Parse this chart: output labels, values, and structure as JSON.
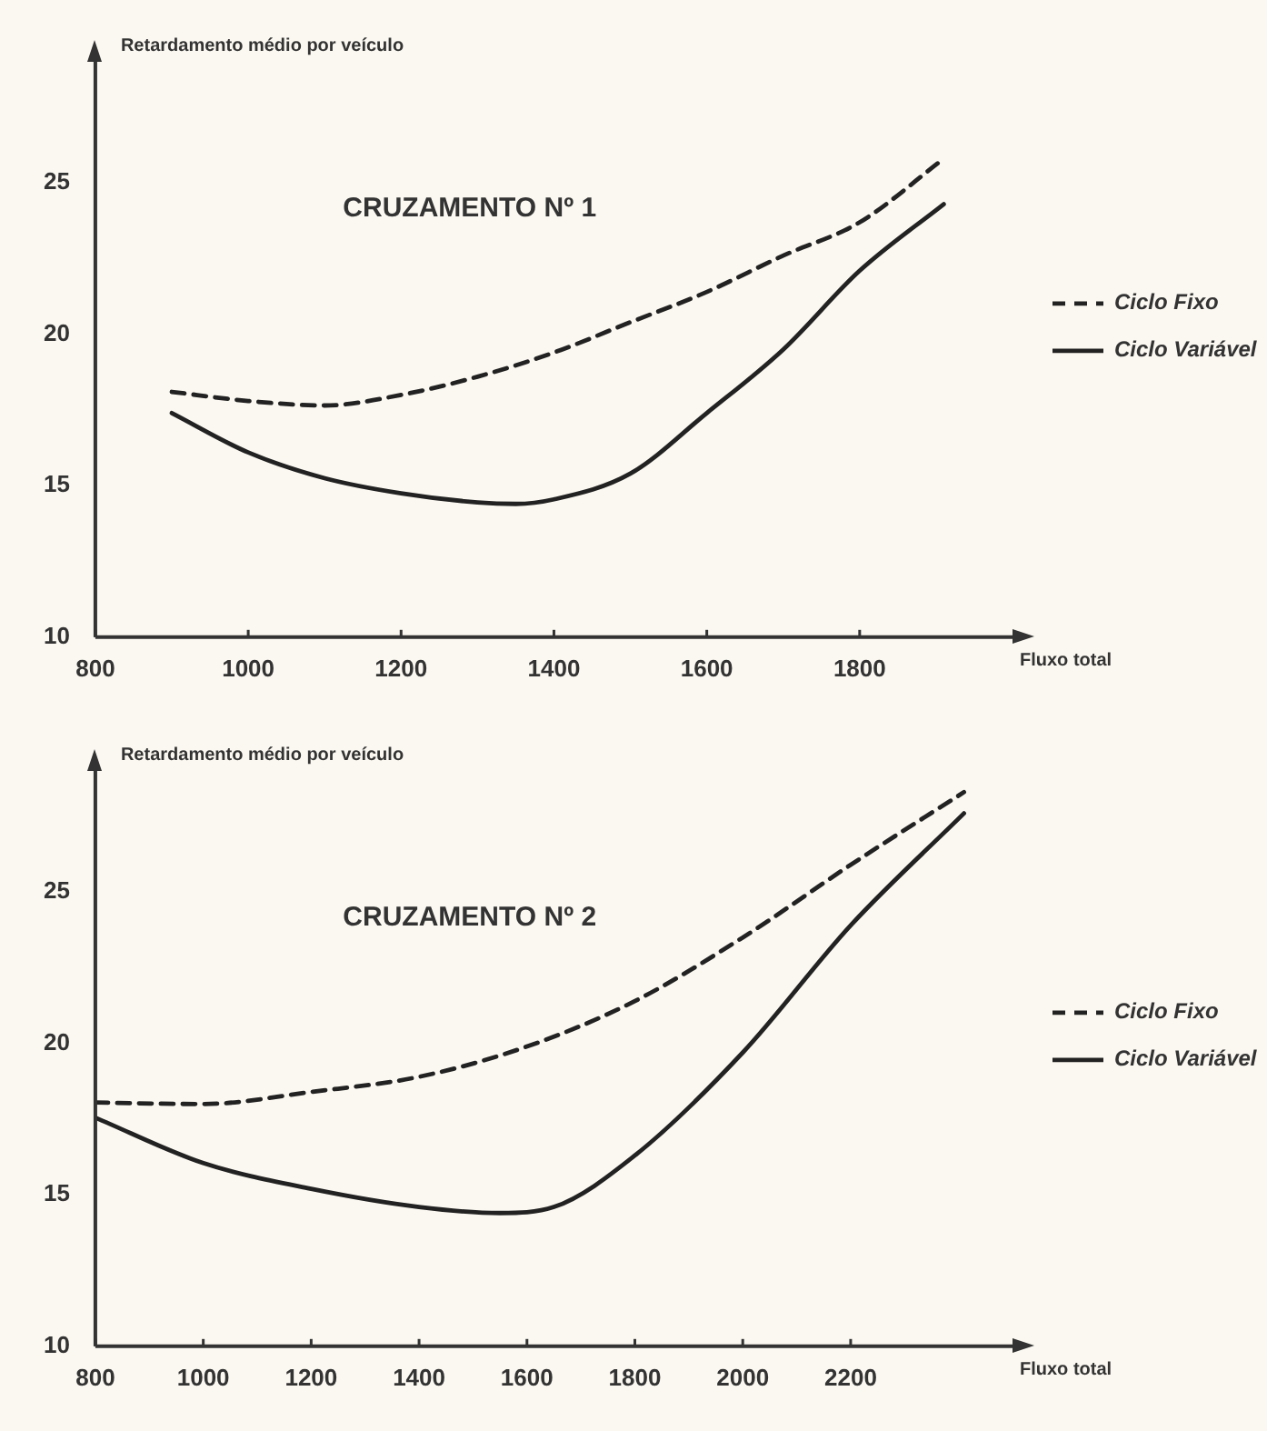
{
  "chart_data": [
    {
      "type": "line",
      "title": "CRUZAMENTO Nº 1",
      "xlabel": "Fluxo total",
      "ylabel": "Retardamento médio por veículo",
      "xlim": [
        800,
        2000
      ],
      "xticks": [
        800,
        1000,
        1200,
        1400,
        1600,
        1800
      ],
      "ylim": [
        10,
        29
      ],
      "yticks": [
        10,
        15,
        20,
        25
      ],
      "grid": false,
      "legend": "right",
      "marker": "none",
      "series": [
        {
          "name": "Ciclo Fixo",
          "color": "#222222",
          "line_style": "dashed",
          "x": [
            900,
            1000,
            1100,
            1200,
            1300,
            1400,
            1500,
            1600,
            1700,
            1800,
            1910
          ],
          "values": [
            18.1,
            17.8,
            17.65,
            18.0,
            18.6,
            19.4,
            20.4,
            21.4,
            22.6,
            23.7,
            25.8
          ]
        },
        {
          "name": "Ciclo Variável",
          "color": "#222222",
          "line_style": "solid",
          "x": [
            900,
            1000,
            1100,
            1200,
            1300,
            1350,
            1400,
            1500,
            1600,
            1700,
            1800,
            1910
          ],
          "values": [
            17.4,
            16.1,
            15.25,
            14.75,
            14.45,
            14.4,
            14.55,
            15.4,
            17.4,
            19.5,
            22.1,
            24.3
          ]
        }
      ]
    },
    {
      "type": "line",
      "title": "CRUZAMENTO Nº 2",
      "xlabel": "Fluxo total",
      "ylabel": "Retardamento médio por veículo",
      "xlim": [
        800,
        2500
      ],
      "xticks": [
        800,
        1000,
        1200,
        1400,
        1600,
        1800,
        2000,
        2200
      ],
      "ylim": [
        10,
        29
      ],
      "yticks": [
        10,
        15,
        20,
        25
      ],
      "grid": false,
      "legend": "right",
      "marker": "none",
      "series": [
        {
          "name": "Ciclo Fixo",
          "color": "#222222",
          "line_style": "dashed",
          "x": [
            800,
            1000,
            1200,
            1400,
            1600,
            1800,
            2000,
            2200,
            2410
          ],
          "values": [
            18.05,
            18.0,
            18.4,
            18.9,
            19.9,
            21.4,
            23.5,
            25.9,
            28.3
          ]
        },
        {
          "name": "Ciclo Variável",
          "color": "#222222",
          "line_style": "solid",
          "x": [
            800,
            1000,
            1200,
            1400,
            1550,
            1650,
            1800,
            2000,
            2200,
            2410
          ],
          "values": [
            17.55,
            16.05,
            15.2,
            14.6,
            14.4,
            14.6,
            16.3,
            19.7,
            23.9,
            27.6
          ]
        }
      ]
    }
  ]
}
